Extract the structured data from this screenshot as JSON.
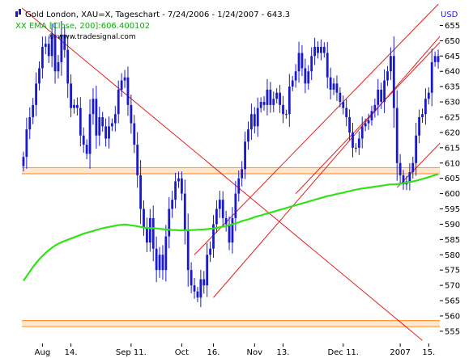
{
  "header": {
    "title": "Gold London, XAU=X, Tageschart - 7/24/2006 - 1/24/2007 - 643.3",
    "currency": "USD",
    "ema_label": "XX EMA [Close, 200]:606.400102",
    "watermark": "© www.tradesignal.com"
  },
  "colors": {
    "background": "#ffffff",
    "candle": "#1a1acc",
    "ema": "#33e01a",
    "channel": "#e02020",
    "band": "#ff9a3c",
    "text": "#000000"
  },
  "chart_data": {
    "type": "candlestick",
    "title": "Gold London, XAU=X, Tageschart - 7/24/2006 - 1/24/2007 - 643.3",
    "ylim": [
      551,
      662
    ],
    "y_ticks": [
      555,
      560,
      565,
      570,
      575,
      580,
      585,
      590,
      595,
      600,
      605,
      610,
      615,
      620,
      625,
      630,
      635,
      640,
      645,
      650,
      655
    ],
    "x_tick_labels": [
      {
        "label": "Aug",
        "i": 6
      },
      {
        "label": "14.",
        "i": 15
      },
      {
        "label": "Sep 11.",
        "i": 34
      },
      {
        "label": "Oct",
        "i": 50
      },
      {
        "label": "16.",
        "i": 60
      },
      {
        "label": "Nov",
        "i": 73
      },
      {
        "label": "13.",
        "i": 82
      },
      {
        "label": "Dec 11.",
        "i": 101
      },
      {
        "label": "2007",
        "i": 119
      },
      {
        "label": "15.",
        "i": 128
      }
    ],
    "n_bars": 132,
    "close": [
      612,
      621,
      625,
      629,
      636,
      641,
      648,
      649,
      645,
      652,
      640,
      643,
      652,
      647,
      636,
      628,
      629,
      628,
      619,
      616,
      613,
      626,
      631,
      619,
      625,
      622,
      618,
      622,
      623,
      626,
      634,
      637,
      638,
      629,
      623,
      616,
      606,
      595,
      589,
      584,
      592,
      582,
      575,
      580,
      575,
      586,
      595,
      598,
      604,
      605,
      600,
      588,
      575,
      570,
      568,
      566,
      572,
      570,
      580,
      582,
      590,
      595,
      598,
      592,
      590,
      584,
      592,
      600,
      605,
      608,
      617,
      621,
      626,
      622,
      628,
      630,
      629,
      634,
      629,
      631,
      633,
      629,
      626,
      626,
      635,
      637,
      640,
      646,
      641,
      636,
      640,
      645,
      648,
      646,
      648,
      646,
      638,
      634,
      636,
      633,
      630,
      628,
      625,
      620,
      615,
      615,
      618,
      622,
      623,
      624,
      627,
      629,
      634,
      630,
      637,
      640,
      645,
      628,
      610,
      606,
      603,
      604,
      607,
      610,
      619,
      625,
      626,
      631,
      633,
      643,
      645,
      643
    ],
    "ema": [
      571.5,
      573.0,
      574.5,
      576.0,
      577.3,
      578.5,
      579.6,
      580.6,
      581.5,
      582.3,
      583.0,
      583.6,
      584.1,
      584.5,
      584.9,
      585.3,
      585.7,
      586.1,
      586.5,
      586.9,
      587.2,
      587.5,
      587.8,
      588.1,
      588.4,
      588.7,
      588.9,
      589.1,
      589.3,
      589.5,
      589.7,
      589.8,
      589.9,
      589.8,
      589.6,
      589.5,
      589.3,
      589.1,
      588.9,
      588.8,
      588.7,
      588.7,
      588.6,
      588.5,
      588.4,
      588.3,
      588.2,
      588.1,
      588.1,
      588.0,
      588.0,
      588.0,
      588.0,
      588.1,
      588.1,
      588.2,
      588.2,
      588.3,
      588.4,
      588.5,
      588.6,
      588.8,
      589.0,
      589.2,
      589.4,
      589.7,
      590.0,
      590.3,
      590.6,
      591.0,
      591.3,
      591.6,
      591.9,
      592.3,
      592.6,
      592.9,
      593.2,
      593.5,
      593.8,
      594.1,
      594.4,
      594.7,
      595.0,
      595.3,
      595.6,
      595.9,
      596.2,
      596.5,
      596.8,
      597.1,
      597.4,
      597.7,
      598.0,
      598.3,
      598.6,
      598.9,
      599.2,
      599.4,
      599.6,
      599.9,
      600.1,
      600.3,
      600.6,
      600.8,
      601.1,
      601.3,
      601.5,
      601.7,
      601.8,
      602.0,
      602.1,
      602.3,
      602.4,
      602.6,
      602.7,
      602.9,
      603.0,
      603.0,
      603.1,
      603.2,
      603.4,
      603.6,
      603.8,
      604.0,
      604.2,
      604.5,
      604.8,
      605.1,
      605.4,
      605.7,
      606.1,
      606.4
    ],
    "support_bands": [
      [
        606.5,
        608.5
      ],
      [
        556.5,
        558.5
      ]
    ],
    "trend_lines": [
      {
        "from": {
          "i": -2,
          "y": 662
        },
        "to": {
          "i": 126,
          "y": 552
        }
      },
      {
        "from": {
          "i": 54,
          "y": 580
        },
        "to": {
          "i": 132,
          "y": 663
        }
      },
      {
        "from": {
          "i": 60,
          "y": 566
        },
        "to": {
          "i": 132,
          "y": 652
        }
      },
      {
        "from": {
          "i": 86,
          "y": 600
        },
        "to": {
          "i": 132,
          "y": 650
        }
      },
      {
        "from": {
          "i": 118,
          "y": 602
        },
        "to": {
          "i": 132,
          "y": 617
        }
      }
    ]
  }
}
